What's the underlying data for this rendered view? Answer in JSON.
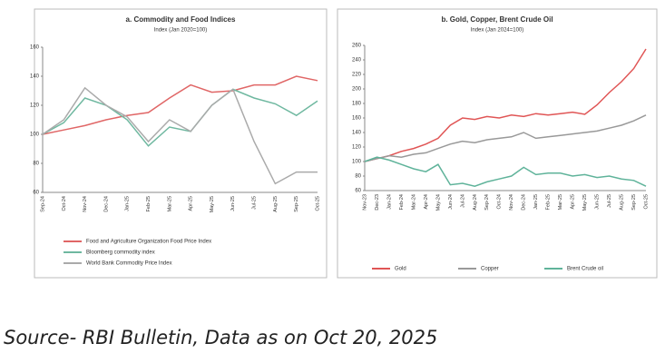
{
  "chart_data": [
    {
      "type": "line",
      "title": "a. Commodity and Food Indices",
      "subtitle": "Index (Jan 2020=100)",
      "categories": [
        "Sep-24",
        "Oct-24",
        "Nov-24",
        "Dec-24",
        "Jan-25",
        "Feb-25",
        "Mar-25",
        "Apr-25",
        "May-25",
        "Jun-25",
        "Jul-25",
        "Aug-25",
        "Sep-25",
        "Oct-25"
      ],
      "ylim": [
        60,
        160
      ],
      "yticks": [
        60,
        80,
        100,
        120,
        140,
        160
      ],
      "grid": false,
      "series": [
        {
          "name": "Food and Agriculture Organization Food Price Index",
          "color": "#e06666",
          "values": [
            100,
            103,
            106,
            110,
            113,
            115,
            125,
            134,
            129,
            130,
            134,
            134,
            140,
            137
          ]
        },
        {
          "name": "Bloomberg commodity index",
          "color": "#6fb8a0",
          "values": [
            100,
            108,
            125,
            120,
            110,
            92,
            105,
            102,
            120,
            131,
            125,
            121,
            113,
            123
          ]
        },
        {
          "name": "World Bank Commodity Price Index",
          "color": "#aaaaaa",
          "values": [
            100,
            110,
            132,
            120,
            112,
            95,
            110,
            102,
            120,
            131,
            95,
            66,
            74,
            74
          ]
        }
      ]
    },
    {
      "type": "line",
      "title": "b. Gold, Copper, Brent Crude Oil",
      "subtitle": "Index (Jan 2024=100)",
      "categories": [
        "Nov-23",
        "Dec-23",
        "Jan-24",
        "Feb-24",
        "Mar-24",
        "Apr-24",
        "May-24",
        "Jun-24",
        "Jul-24",
        "Aug-24",
        "Sep-24",
        "Oct-24",
        "Nov-24",
        "Dec-24",
        "Jan-25",
        "Feb-25",
        "Mar-25",
        "Apr-25",
        "May-25",
        "Jun-25",
        "Jul-25",
        "Aug-25",
        "Sep-25",
        "Oct-25"
      ],
      "ylim": [
        60,
        260
      ],
      "yticks": [
        60,
        80,
        100,
        120,
        140,
        160,
        180,
        200,
        220,
        240,
        260
      ],
      "grid": false,
      "series": [
        {
          "name": "Gold",
          "color": "#e05555",
          "values": [
            100,
            104,
            108,
            114,
            118,
            124,
            132,
            150,
            160,
            158,
            162,
            160,
            164,
            162,
            166,
            164,
            166,
            168,
            165,
            178,
            195,
            210,
            228,
            255
          ]
        },
        {
          "name": "Copper",
          "color": "#999999",
          "values": [
            100,
            104,
            108,
            106,
            110,
            112,
            118,
            124,
            128,
            126,
            130,
            132,
            134,
            140,
            132,
            134,
            136,
            138,
            140,
            142,
            146,
            150,
            156,
            164
          ]
        },
        {
          "name": "Brent Crude oil",
          "color": "#5fb39a",
          "values": [
            100,
            106,
            102,
            96,
            90,
            86,
            96,
            68,
            70,
            66,
            72,
            76,
            80,
            92,
            82,
            84,
            84,
            80,
            82,
            78,
            80,
            76,
            74,
            66
          ]
        }
      ]
    }
  ],
  "source": "Source- RBI Bulletin, Data as on Oct 20, 2025"
}
